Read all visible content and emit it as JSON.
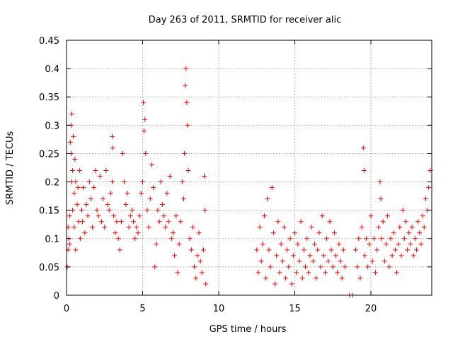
{
  "chart_data": {
    "type": "scatter",
    "title": "Day 263 of 2011, SRMTID for receiver alic",
    "xlabel": "GPS time / hours",
    "ylabel": "SRMTID / TECUs",
    "xlim": [
      0,
      24
    ],
    "ylim": [
      0,
      0.45
    ],
    "x_ticks": [
      0,
      5,
      10,
      15,
      20
    ],
    "x_tick_labels": [
      "0",
      "5",
      "10",
      "15",
      "20"
    ],
    "y_ticks": [
      0,
      0.05,
      0.1,
      0.15,
      0.2,
      0.25,
      0.3,
      0.35,
      0.4,
      0.45
    ],
    "y_tick_labels": [
      "0",
      "0.05",
      "0.1",
      "0.15",
      "0.2",
      "0.25",
      "0.3",
      "0.35",
      "0.4",
      "0.45"
    ],
    "grid": true,
    "marker": "plus",
    "marker_color": "#ff0000",
    "series": [
      {
        "name": "SRMTID",
        "points": [
          [
            0.05,
            0.05
          ],
          [
            0.1,
            0.08
          ],
          [
            0.1,
            0.12
          ],
          [
            0.15,
            0.1
          ],
          [
            0.2,
            0.14
          ],
          [
            0.2,
            0.09
          ],
          [
            0.25,
            0.27
          ],
          [
            0.3,
            0.3
          ],
          [
            0.3,
            0.25
          ],
          [
            0.35,
            0.32
          ],
          [
            0.35,
            0.2
          ],
          [
            0.4,
            0.22
          ],
          [
            0.4,
            0.15
          ],
          [
            0.45,
            0.28
          ],
          [
            0.5,
            0.18
          ],
          [
            0.5,
            0.12
          ],
          [
            0.55,
            0.24
          ],
          [
            0.6,
            0.2
          ],
          [
            0.6,
            0.08
          ],
          [
            0.7,
            0.16
          ],
          [
            0.75,
            0.19
          ],
          [
            0.8,
            0.13
          ],
          [
            0.85,
            0.22
          ],
          [
            0.9,
            0.1
          ],
          [
            1.0,
            0.15
          ],
          [
            1.05,
            0.13
          ],
          [
            1.1,
            0.19
          ],
          [
            1.2,
            0.11
          ],
          [
            1.3,
            0.16
          ],
          [
            1.4,
            0.14
          ],
          [
            1.5,
            0.2
          ],
          [
            1.6,
            0.17
          ],
          [
            1.7,
            0.12
          ],
          [
            1.8,
            0.19
          ],
          [
            1.9,
            0.22
          ],
          [
            2.0,
            0.15
          ],
          [
            2.1,
            0.14
          ],
          [
            2.2,
            0.21
          ],
          [
            2.3,
            0.13
          ],
          [
            2.4,
            0.17
          ],
          [
            2.5,
            0.12
          ],
          [
            2.6,
            0.22
          ],
          [
            2.7,
            0.16
          ],
          [
            2.8,
            0.15
          ],
          [
            2.9,
            0.18
          ],
          [
            3.0,
            0.28
          ],
          [
            3.0,
            0.2
          ],
          [
            3.05,
            0.26
          ],
          [
            3.1,
            0.14
          ],
          [
            3.2,
            0.11
          ],
          [
            3.3,
            0.13
          ],
          [
            3.4,
            0.1
          ],
          [
            3.5,
            0.08
          ],
          [
            3.6,
            0.13
          ],
          [
            3.7,
            0.25
          ],
          [
            3.8,
            0.2
          ],
          [
            3.9,
            0.16
          ],
          [
            4.0,
            0.18
          ],
          [
            4.1,
            0.12
          ],
          [
            4.2,
            0.14
          ],
          [
            4.3,
            0.15
          ],
          [
            4.4,
            0.13
          ],
          [
            4.5,
            0.1
          ],
          [
            4.6,
            0.12
          ],
          [
            4.7,
            0.11
          ],
          [
            4.8,
            0.14
          ],
          [
            4.9,
            0.18
          ],
          [
            5.0,
            0.2
          ],
          [
            5.05,
            0.34
          ],
          [
            5.1,
            0.29
          ],
          [
            5.15,
            0.31
          ],
          [
            5.2,
            0.25
          ],
          [
            5.3,
            0.15
          ],
          [
            5.4,
            0.12
          ],
          [
            5.5,
            0.17
          ],
          [
            5.6,
            0.23
          ],
          [
            5.7,
            0.19
          ],
          [
            5.8,
            0.05
          ],
          [
            5.9,
            0.09
          ],
          [
            6.0,
            0.15
          ],
          [
            6.1,
            0.13
          ],
          [
            6.2,
            0.2
          ],
          [
            6.3,
            0.16
          ],
          [
            6.4,
            0.14
          ],
          [
            6.5,
            0.12
          ],
          [
            6.6,
            0.18
          ],
          [
            6.7,
            0.13
          ],
          [
            6.8,
            0.21
          ],
          [
            6.9,
            0.1
          ],
          [
            7.0,
            0.11
          ],
          [
            7.1,
            0.07
          ],
          [
            7.2,
            0.14
          ],
          [
            7.3,
            0.04
          ],
          [
            7.4,
            0.09
          ],
          [
            7.5,
            0.13
          ],
          [
            7.6,
            0.2
          ],
          [
            7.7,
            0.17
          ],
          [
            7.75,
            0.25
          ],
          [
            7.8,
            0.37
          ],
          [
            7.85,
            0.4
          ],
          [
            7.9,
            0.34
          ],
          [
            7.95,
            0.3
          ],
          [
            8.0,
            0.22
          ],
          [
            8.1,
            0.1
          ],
          [
            8.2,
            0.08
          ],
          [
            8.3,
            0.12
          ],
          [
            8.4,
            0.05
          ],
          [
            8.5,
            0.03
          ],
          [
            8.6,
            0.07
          ],
          [
            8.7,
            0.11
          ],
          [
            8.8,
            0.06
          ],
          [
            8.9,
            0.04
          ],
          [
            9.0,
            0.08
          ],
          [
            9.05,
            0.21
          ],
          [
            9.1,
            0.15
          ],
          [
            9.15,
            0.02
          ],
          [
            12.5,
            0.08
          ],
          [
            12.6,
            0.04
          ],
          [
            12.7,
            0.12
          ],
          [
            12.8,
            0.06
          ],
          [
            12.9,
            0.09
          ],
          [
            13.0,
            0.14
          ],
          [
            13.1,
            0.03
          ],
          [
            13.2,
            0.17
          ],
          [
            13.3,
            0.08
          ],
          [
            13.4,
            0.05
          ],
          [
            13.5,
            0.19
          ],
          [
            13.6,
            0.11
          ],
          [
            13.7,
            0.02
          ],
          [
            13.8,
            0.07
          ],
          [
            13.9,
            0.13
          ],
          [
            14.0,
            0.04
          ],
          [
            14.1,
            0.09
          ],
          [
            14.2,
            0.06
          ],
          [
            14.3,
            0.12
          ],
          [
            14.4,
            0.03
          ],
          [
            14.5,
            0.08
          ],
          [
            14.6,
            0.05
          ],
          [
            14.7,
            0.1
          ],
          [
            14.8,
            0.02
          ],
          [
            14.9,
            0.07
          ],
          [
            15.0,
            0.11
          ],
          [
            15.1,
            0.04
          ],
          [
            15.2,
            0.09
          ],
          [
            15.3,
            0.06
          ],
          [
            15.4,
            0.13
          ],
          [
            15.5,
            0.03
          ],
          [
            15.6,
            0.08
          ],
          [
            15.7,
            0.05
          ],
          [
            15.8,
            0.1
          ],
          [
            15.9,
            0.04
          ],
          [
            16.0,
            0.07
          ],
          [
            16.1,
            0.12
          ],
          [
            16.2,
            0.06
          ],
          [
            16.3,
            0.09
          ],
          [
            16.4,
            0.03
          ],
          [
            16.5,
            0.08
          ],
          [
            16.6,
            0.11
          ],
          [
            16.7,
            0.05
          ],
          [
            16.8,
            0.14
          ],
          [
            16.9,
            0.07
          ],
          [
            17.0,
            0.04
          ],
          [
            17.1,
            0.1
          ],
          [
            17.2,
            0.06
          ],
          [
            17.3,
            0.13
          ],
          [
            17.4,
            0.08
          ],
          [
            17.5,
            0.05
          ],
          [
            17.6,
            0.11
          ],
          [
            17.7,
            0.07
          ],
          [
            17.8,
            0.04
          ],
          [
            17.9,
            0.09
          ],
          [
            18.0,
            0.06
          ],
          [
            18.1,
            0.03
          ],
          [
            18.2,
            0.08
          ],
          [
            18.3,
            0.05
          ],
          [
            18.6,
            0.0
          ],
          [
            18.8,
            0.0
          ],
          [
            19.0,
            0.08
          ],
          [
            19.1,
            0.05
          ],
          [
            19.2,
            0.1
          ],
          [
            19.3,
            0.03
          ],
          [
            19.4,
            0.12
          ],
          [
            19.5,
            0.26
          ],
          [
            19.55,
            0.22
          ],
          [
            19.6,
            0.07
          ],
          [
            19.7,
            0.1
          ],
          [
            19.8,
            0.05
          ],
          [
            19.9,
            0.09
          ],
          [
            20.0,
            0.14
          ],
          [
            20.1,
            0.06
          ],
          [
            20.2,
            0.1
          ],
          [
            20.3,
            0.04
          ],
          [
            20.4,
            0.08
          ],
          [
            20.5,
            0.12
          ],
          [
            20.6,
            0.2
          ],
          [
            20.65,
            0.17
          ],
          [
            20.7,
            0.1
          ],
          [
            20.8,
            0.13
          ],
          [
            20.9,
            0.06
          ],
          [
            21.0,
            0.09
          ],
          [
            21.1,
            0.14
          ],
          [
            21.2,
            0.05
          ],
          [
            21.3,
            0.1
          ],
          [
            21.4,
            0.07
          ],
          [
            21.5,
            0.11
          ],
          [
            21.6,
            0.08
          ],
          [
            21.7,
            0.04
          ],
          [
            21.8,
            0.09
          ],
          [
            21.9,
            0.12
          ],
          [
            22.0,
            0.07
          ],
          [
            22.1,
            0.15
          ],
          [
            22.2,
            0.1
          ],
          [
            22.3,
            0.13
          ],
          [
            22.4,
            0.08
          ],
          [
            22.5,
            0.11
          ],
          [
            22.6,
            0.09
          ],
          [
            22.7,
            0.12
          ],
          [
            22.8,
            0.07
          ],
          [
            22.9,
            0.1
          ],
          [
            23.0,
            0.08
          ],
          [
            23.1,
            0.13
          ],
          [
            23.2,
            0.11
          ],
          [
            23.3,
            0.09
          ],
          [
            23.4,
            0.14
          ],
          [
            23.5,
            0.12
          ],
          [
            23.6,
            0.17
          ],
          [
            23.7,
            0.15
          ],
          [
            23.8,
            0.19
          ],
          [
            23.9,
            0.22
          ]
        ]
      }
    ]
  }
}
